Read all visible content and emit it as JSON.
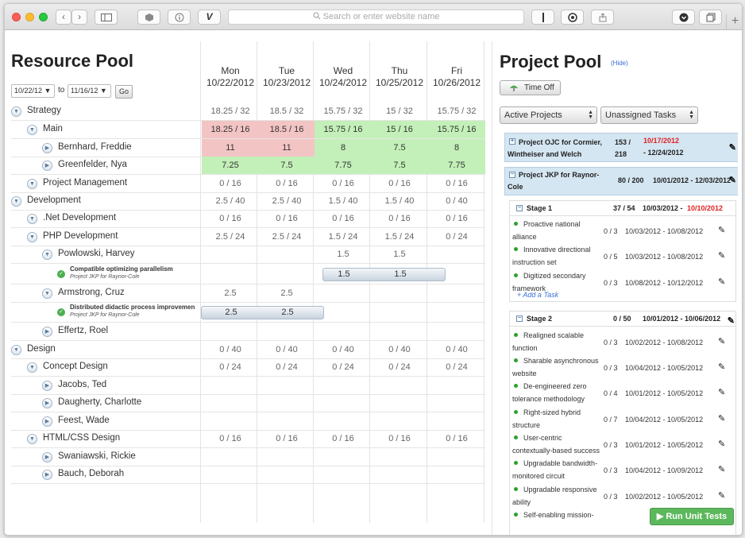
{
  "browser": {
    "address_placeholder": "Search or enter website name",
    "nav_back": "‹",
    "nav_forward": "›"
  },
  "resource_pool": {
    "title": "Resource Pool",
    "date_from": "10/22/12 ▼",
    "date_to": "11/16/12 ▼",
    "to_label": "to",
    "go_label": "Go",
    "days": [
      {
        "day": "Mon",
        "date": "10/22/2012"
      },
      {
        "day": "Tue",
        "date": "10/23/2012"
      },
      {
        "day": "Wed",
        "date": "10/24/2012"
      },
      {
        "day": "Thu",
        "date": "10/25/2012"
      },
      {
        "day": "Fri",
        "date": "10/26/2012"
      }
    ],
    "rows": [
      {
        "label": "Strategy",
        "cells": [
          "18.25 / 32",
          "18.5 / 32",
          "15.75 / 32",
          "15 / 32",
          "15.75 / 32"
        ]
      },
      {
        "label": "Main",
        "cells": [
          "18.25 / 16",
          "18.5 / 16",
          "15.75 / 16",
          "15 / 16",
          "15.75 / 16"
        ]
      },
      {
        "label": "Bernhard, Freddie",
        "cells": [
          "11",
          "11",
          "8",
          "7.5",
          "8"
        ]
      },
      {
        "label": "Greenfelder, Nya",
        "cells": [
          "7.25",
          "7.5",
          "7.75",
          "7.5",
          "7.75"
        ]
      },
      {
        "label": "Project Management",
        "cells": [
          "0 / 16",
          "0 / 16",
          "0 / 16",
          "0 / 16",
          "0 / 16"
        ]
      },
      {
        "label": "Development",
        "cells": [
          "2.5 / 40",
          "2.5 / 40",
          "1.5 / 40",
          "1.5 / 40",
          "0 / 40"
        ]
      },
      {
        "label": ".Net Development",
        "cells": [
          "0 / 16",
          "0 / 16",
          "0 / 16",
          "0 / 16",
          "0 / 16"
        ]
      },
      {
        "label": "PHP Development",
        "cells": [
          "2.5 / 24",
          "2.5 / 24",
          "1.5 / 24",
          "1.5 / 24",
          "0 / 24"
        ]
      },
      {
        "label": "Powlowski, Harvey",
        "cells": [
          "",
          "",
          "1.5",
          "1.5",
          ""
        ]
      },
      {
        "label": "Armstrong, Cruz",
        "cells": [
          "2.5",
          "2.5",
          "",
          "",
          ""
        ]
      },
      {
        "label": "Effertz, Roel",
        "cells": [
          "",
          "",
          "",
          "",
          ""
        ]
      },
      {
        "label": "Design",
        "cells": [
          "0 / 40",
          "0 / 40",
          "0 / 40",
          "0 / 40",
          "0 / 40"
        ]
      },
      {
        "label": "Concept Design",
        "cells": [
          "0 / 24",
          "0 / 24",
          "0 / 24",
          "0 / 24",
          "0 / 24"
        ]
      },
      {
        "label": "Jacobs, Ted",
        "cells": [
          "",
          "",
          "",
          "",
          ""
        ]
      },
      {
        "label": "Daugherty, Charlotte",
        "cells": [
          "",
          "",
          "",
          "",
          ""
        ]
      },
      {
        "label": "Feest, Wade",
        "cells": [
          "",
          "",
          "",
          "",
          ""
        ]
      },
      {
        "label": "HTML/CSS Design",
        "cells": [
          "0 / 16",
          "0 / 16",
          "0 / 16",
          "0 / 16",
          "0 / 16"
        ]
      },
      {
        "label": "Swaniawski, Rickie",
        "cells": [
          "",
          "",
          "",
          "",
          ""
        ]
      },
      {
        "label": "Bauch, Deborah",
        "cells": [
          "",
          "",
          "",
          "",
          ""
        ]
      }
    ],
    "tasks": [
      {
        "title": "Compatible optimizing parallelism",
        "project": "Project JKP for Raynor-Cole",
        "pill_values": [
          "1.5",
          "1.5"
        ]
      },
      {
        "title": "Distributed didactic process improvemen",
        "project": "Project JKP for Raynor-Cole",
        "pill_values": [
          "2.5",
          "2.5"
        ]
      }
    ]
  },
  "project_pool": {
    "title": "Project Pool",
    "hide_link": "(Hide)",
    "time_off_label": "Time Off",
    "filter_projects": "Active Projects",
    "filter_tasks": "Unassigned Tasks",
    "projects": [
      {
        "name": "Project OJC for Cormier, Wintheiser and Welch",
        "hours": "153 / 218",
        "start": "10/17/2012",
        "end": "- 12/24/2012"
      },
      {
        "name": "Project JKP for Raynor-Cole",
        "hours": "80 / 200",
        "dates": "10/01/2012 - 12/03/2012"
      }
    ],
    "stages": [
      {
        "name": "Stage 1",
        "hours": "37 / 54",
        "start": "10/03/2012 -",
        "end": "10/10/2012",
        "tasks": [
          {
            "name": "Proactive national alliance",
            "count": "0 / 3",
            "dates": "10/03/2012 - 10/08/2012"
          },
          {
            "name": "Innovative directional instruction set",
            "count": "0 / 5",
            "dates": "10/03/2012 - 10/08/2012"
          },
          {
            "name": "Digitized secondary framework",
            "count": "0 / 3",
            "dates": "10/08/2012 - 10/12/2012"
          }
        ],
        "add_task": "+ Add a Task"
      },
      {
        "name": "Stage 2",
        "hours": "0 / 50",
        "dates": "10/01/2012 - 10/06/2012",
        "tasks": [
          {
            "name": "Realigned scalable function",
            "count": "0 / 3",
            "dates": "10/02/2012 - 10/08/2012"
          },
          {
            "name": "Sharable asynchronous website",
            "count": "0 / 3",
            "dates": "10/04/2012 - 10/05/2012"
          },
          {
            "name": "De-engineered zero tolerance methodology",
            "count": "0 / 4",
            "dates": "10/01/2012 - 10/05/2012"
          },
          {
            "name": "Right-sized hybrid structure",
            "count": "0 / 7",
            "dates": "10/04/2012 - 10/05/2012"
          },
          {
            "name": "User-centric contextually-based success",
            "count": "0 / 3",
            "dates": "10/01/2012 - 10/05/2012"
          },
          {
            "name": "Upgradable bandwidth-monitored circuit",
            "count": "0 / 3",
            "dates": "10/04/2012 - 10/09/2012"
          },
          {
            "name": "Upgradable responsive ability",
            "count": "0 / 3",
            "dates": "10/02/2012 - 10/05/2012"
          },
          {
            "name": "Self-enabling mission-",
            "count": "",
            "dates": ""
          }
        ]
      }
    ]
  },
  "run_tests_label": "▶ Run Unit Tests",
  "colors": {
    "over": "#f3c4c4",
    "ok": "#c3f0b8",
    "overdue": "#e02020",
    "link": "#3a6dd6"
  }
}
